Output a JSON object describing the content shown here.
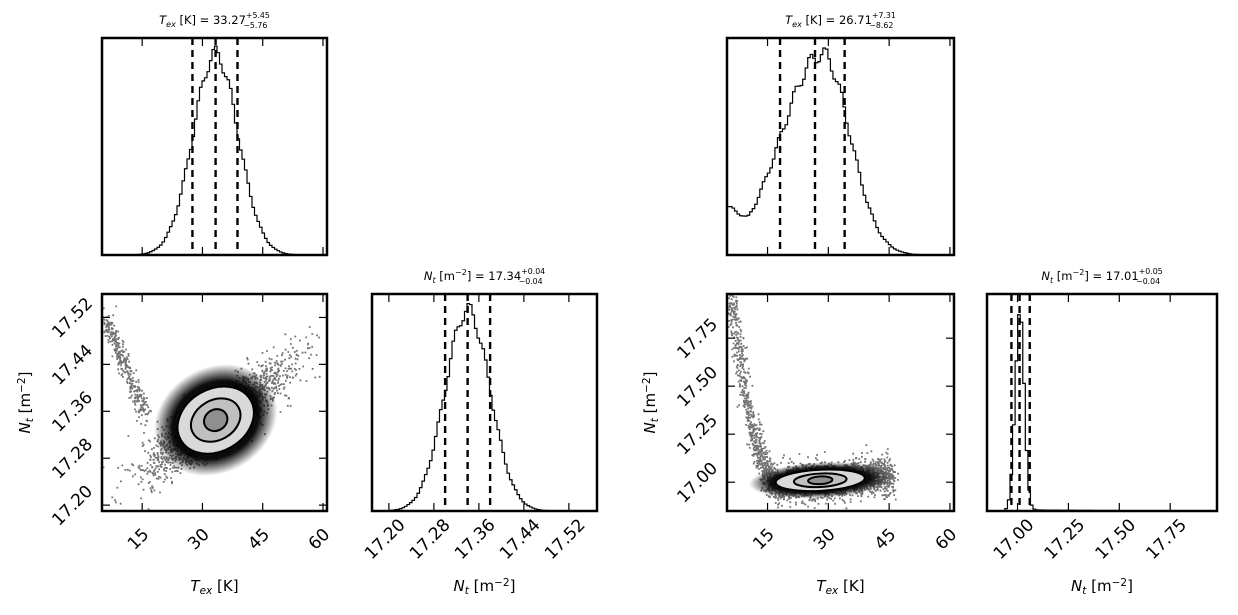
{
  "chart_data": [
    {
      "id": "L_hist_tex",
      "type": "histogram",
      "title": "T_ex [K] = 33.27 +5.45 −5.76",
      "title_parts": {
        "sym": "T",
        "sub": "ex",
        "unit": " [K] = ",
        "val": "33.27",
        "up": "+5.45",
        "lo": "−5.76"
      },
      "xlim": [
        5,
        61
      ],
      "median": 33.27,
      "q16": 27.51,
      "q84": 38.72,
      "dist": {
        "kind": "gauss",
        "mu": 33.27,
        "sigma": 5.6
      },
      "ticks": [
        15,
        30,
        45,
        60
      ]
    },
    {
      "id": "L_scatter",
      "type": "scatter",
      "xlabel_parts": {
        "sym": "T",
        "sub": "ex",
        "unit": " [K]"
      },
      "ylabel_parts": {
        "sym": "N",
        "sub": "t",
        "unit": " [m",
        "sup": "−2",
        "close": "]"
      },
      "xlim": [
        5,
        61
      ],
      "ylim": [
        17.19,
        17.56
      ],
      "xticks": [
        15,
        30,
        45,
        60
      ],
      "yticks": [
        17.2,
        17.28,
        17.36,
        17.44,
        17.52
      ],
      "ytick_labels": [
        "17.20",
        "17.28",
        "17.36",
        "17.44",
        "17.52"
      ],
      "center": [
        33.3,
        17.345
      ],
      "contours": [
        {
          "level": "inner",
          "rx": 3.0,
          "ry": 0.018
        },
        {
          "level": "mid",
          "rx": 6.5,
          "ry": 0.034
        },
        {
          "level": "outer",
          "rx": 10.0,
          "ry": 0.053
        }
      ]
    },
    {
      "id": "L_hist_nt",
      "type": "histogram",
      "title_parts": {
        "sym": "N",
        "sub": "t",
        "unit": " [m",
        "sup": "−2",
        "after": "] = ",
        "val": "17.34",
        "up": "+0.04",
        "lo": "−0.04"
      },
      "xlabel_parts": {
        "sym": "N",
        "sub": "t",
        "unit": " [m",
        "sup": "−2",
        "close": "]"
      },
      "xlim": [
        17.17,
        17.57
      ],
      "median": 17.34,
      "q16": 17.3,
      "q84": 17.38,
      "dist": {
        "kind": "gauss",
        "mu": 17.34,
        "sigma": 0.04
      },
      "ticks": [
        17.2,
        17.28,
        17.36,
        17.44,
        17.52
      ],
      "tick_labels": [
        "17.20",
        "17.28",
        "17.36",
        "17.44",
        "17.52"
      ]
    },
    {
      "id": "R_hist_tex",
      "type": "histogram",
      "title_parts": {
        "sym": "T",
        "sub": "ex",
        "unit": " [K] = ",
        "val": "26.71",
        "up": "+7.31",
        "lo": "−8.62"
      },
      "xlim": [
        5,
        61
      ],
      "median": 26.71,
      "q16": 18.09,
      "q84": 34.02,
      "dist": {
        "kind": "skew",
        "mu": 28.5,
        "sigmaL": 10.0,
        "sigmaR": 6.8,
        "floor": 0.16
      },
      "ticks": [
        15,
        30,
        45,
        60
      ]
    },
    {
      "id": "R_scatter",
      "type": "scatter",
      "xlabel_parts": {
        "sym": "T",
        "sub": "ex",
        "unit": " [K]"
      },
      "ylabel_parts": {
        "sym": "N",
        "sub": "t",
        "unit": " [m",
        "sup": "−2",
        "close": "]"
      },
      "xlim": [
        5,
        61
      ],
      "ylim": [
        16.85,
        17.98
      ],
      "xticks": [
        15,
        30,
        45,
        60
      ],
      "yticks": [
        17.0,
        17.25,
        17.5,
        17.75
      ],
      "ytick_labels": [
        "17.00",
        "17.25",
        "17.50",
        "17.75"
      ],
      "center": [
        28.0,
        17.01
      ],
      "contours": [
        {
          "level": "inner",
          "rx": 3.0,
          "ry": 0.02
        },
        {
          "level": "mid",
          "rx": 6.5,
          "ry": 0.035
        },
        {
          "level": "outer",
          "rx": 11.0,
          "ry": 0.055
        }
      ]
    },
    {
      "id": "R_hist_nt",
      "type": "histogram",
      "title_parts": {
        "sym": "N",
        "sub": "t",
        "unit": " [m",
        "sup": "−2",
        "after": "] = ",
        "val": "17.01",
        "up": "+0.05",
        "lo": "−0.04"
      },
      "xlabel_parts": {
        "sym": "N",
        "sub": "t",
        "unit": " [m",
        "sup": "−2",
        "close": "]"
      },
      "xlim": [
        16.85,
        17.98
      ],
      "median": 17.01,
      "q16": 16.97,
      "q84": 17.06,
      "dist": {
        "kind": "gauss",
        "mu": 17.01,
        "sigma": 0.022,
        "tail": 0.006
      },
      "ticks": [
        17.0,
        17.25,
        17.5,
        17.75
      ],
      "tick_labels": [
        "17.00",
        "17.25",
        "17.50",
        "17.75"
      ]
    }
  ]
}
